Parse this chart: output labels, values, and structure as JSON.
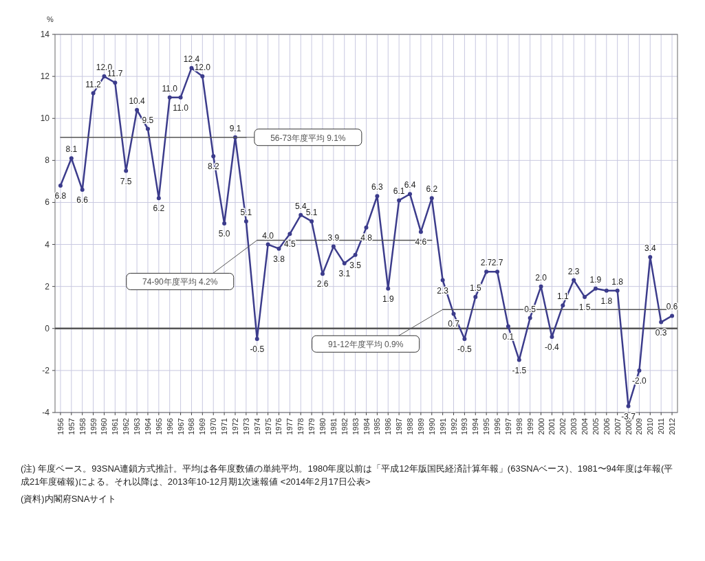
{
  "chart_data": {
    "type": "line",
    "ylabel": "%",
    "categories": [
      "1956",
      "1957",
      "1958",
      "1959",
      "1960",
      "1961",
      "1962",
      "1963",
      "1964",
      "1965",
      "1966",
      "1967",
      "1968",
      "1969",
      "1970",
      "1971",
      "1972",
      "1973",
      "1974",
      "1975",
      "1976",
      "1977",
      "1978",
      "1979",
      "1980",
      "1981",
      "1982",
      "1983",
      "1984",
      "1985",
      "1986",
      "1987",
      "1988",
      "1989",
      "1990",
      "1991",
      "1992",
      "1993",
      "1994",
      "1995",
      "1996",
      "1997",
      "1998",
      "1999",
      "2000",
      "2001",
      "2002",
      "2003",
      "2004",
      "2005",
      "2006",
      "2007",
      "2008",
      "2009",
      "2010",
      "2011",
      "2012"
    ],
    "series": [
      {
        "color": "#3c3c8c",
        "values": [
          6.8,
          8.1,
          6.6,
          11.2,
          12.0,
          11.7,
          7.5,
          10.4,
          9.5,
          6.2,
          11.0,
          11.0,
          12.4,
          12.0,
          8.2,
          5.0,
          9.1,
          5.1,
          -0.5,
          4.0,
          3.8,
          4.5,
          5.4,
          5.1,
          2.6,
          3.9,
          3.1,
          3.5,
          4.8,
          6.3,
          1.9,
          6.1,
          6.4,
          4.6,
          6.2,
          2.3,
          0.7,
          -0.5,
          1.5,
          2.7,
          2.7,
          0.1,
          -1.5,
          0.5,
          2.0,
          -0.4,
          1.1,
          2.3,
          1.5,
          1.9,
          1.8,
          1.8,
          -3.7,
          -2.0,
          3.4,
          0.3,
          0.6
        ],
        "value_labels": [
          "6.8",
          "8.1",
          "6.6",
          "11.2",
          "12.0",
          "11.7",
          "7.5",
          "10.4",
          "9.5",
          "6.2",
          "11.0",
          "11.0",
          "12.4",
          "12.0",
          "8.2",
          "5.0",
          "9.1",
          "5.1",
          "-0.5",
          "4.0",
          "3.8",
          "4.5",
          "5.4",
          "5.1",
          "2.6",
          "3.9",
          "3.1",
          "3.5",
          "4.8",
          "6.3",
          "1.9",
          "6.1",
          "6.4",
          "4.6",
          "6.2",
          "2.3",
          "0.7",
          "-0.5",
          "1.5",
          "2.7",
          "2.7",
          "0.1",
          "-1.5",
          "0.5",
          "2.0",
          "-0.4",
          "1.1",
          "2.3",
          "1.5",
          "1.9",
          "1.8",
          "1.8",
          "-3.7",
          "-2.0",
          "3.4",
          "0.3",
          "0.6"
        ],
        "marker": "circle"
      },
      {
        "name": "56-73年度平均 9.1%",
        "color": "#555555",
        "marker": "none",
        "values": [
          9.1,
          9.1,
          9.1,
          9.1,
          9.1,
          9.1,
          9.1,
          9.1,
          9.1,
          9.1,
          9.1,
          9.1,
          9.1,
          9.1,
          9.1,
          9.1,
          9.1,
          9.1,
          null,
          null,
          null,
          null,
          null,
          null,
          null,
          null,
          null,
          null,
          null,
          null,
          null,
          null,
          null,
          null,
          null,
          null,
          null,
          null,
          null,
          null,
          null,
          null,
          null,
          null,
          null,
          null,
          null,
          null,
          null,
          null,
          null,
          null,
          null,
          null,
          null,
          null,
          null
        ]
      },
      {
        "name": "74-90年度平均 4.2%",
        "color": "#555555",
        "marker": "none",
        "values": [
          null,
          null,
          null,
          null,
          null,
          null,
          null,
          null,
          null,
          null,
          null,
          null,
          null,
          null,
          null,
          null,
          null,
          null,
          4.2,
          4.2,
          4.2,
          4.2,
          4.2,
          4.2,
          4.2,
          4.2,
          4.2,
          4.2,
          4.2,
          4.2,
          4.2,
          4.2,
          4.2,
          4.2,
          4.2,
          null,
          null,
          null,
          null,
          null,
          null,
          null,
          null,
          null,
          null,
          null,
          null,
          null,
          null,
          null,
          null,
          null,
          null,
          null,
          null,
          null,
          null
        ]
      },
      {
        "name": "91-12年度平均 0.9%",
        "color": "#555555",
        "marker": "none",
        "values": [
          null,
          null,
          null,
          null,
          null,
          null,
          null,
          null,
          null,
          null,
          null,
          null,
          null,
          null,
          null,
          null,
          null,
          null,
          null,
          null,
          null,
          null,
          null,
          null,
          null,
          null,
          null,
          null,
          null,
          null,
          null,
          null,
          null,
          null,
          null,
          0.9,
          0.9,
          0.9,
          0.9,
          0.9,
          0.9,
          0.9,
          0.9,
          0.9,
          0.9,
          0.9,
          0.9,
          0.9,
          0.9,
          0.9,
          0.9,
          0.9,
          0.9,
          0.9,
          0.9,
          0.9,
          0.9
        ]
      }
    ],
    "ylim": [
      -4,
      14
    ],
    "yticks": [
      -4,
      -2,
      0,
      2,
      4,
      6,
      8,
      10,
      12,
      14
    ],
    "grid": true,
    "ref_lines": [
      {
        "axis": "y",
        "value": 0,
        "color": "#555555"
      }
    ],
    "annotations": [
      "(注) 年度ベース。93SNA連鎖方式推計。平均は各年度数値の単純平均。1980年度以前は「平成12年版国民経済計算年報」(63SNAベース)、1981〜94年度は年報(平成21年度確報)による。それ以降は、2013年10-12月期1次速報値 <2014年2月17日公表>",
      "(資料)内閣府SNAサイト"
    ]
  }
}
